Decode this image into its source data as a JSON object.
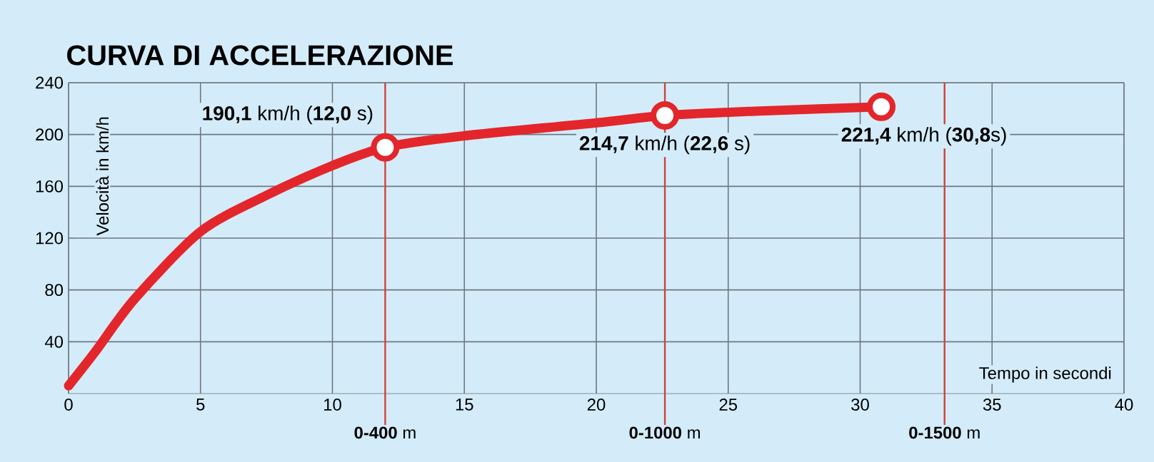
{
  "chart_data": {
    "type": "line",
    "title": "CURVA DI ACCELERAZIONE",
    "xlabel": "Tempo in secondi",
    "ylabel": "Velocità in km/h",
    "xlim": [
      0,
      40
    ],
    "ylim": [
      0,
      240
    ],
    "xticks": [
      0,
      5,
      10,
      15,
      20,
      25,
      30,
      35,
      40
    ],
    "yticks": [
      40,
      80,
      120,
      160,
      200,
      240
    ],
    "grid": true,
    "series": [
      {
        "color": "#e3262b",
        "marker": "none",
        "x": [
          0,
          1,
          2.5,
          5,
          7.5,
          10,
          12,
          15,
          20,
          22.6,
          26,
          30.8
        ],
        "values": [
          6,
          32,
          73,
          125,
          153,
          176,
          190.1,
          199,
          209,
          214.7,
          218,
          221.4
        ]
      },
      {
        "type": "scatter",
        "color": "#e3262b",
        "marker": "circle",
        "x": [
          12,
          22.6,
          30.8
        ],
        "values": [
          190.1,
          214.7,
          221.4
        ]
      }
    ],
    "ref_lines": [
      {
        "axis": "x",
        "value": 12,
        "label": "**0-400** m",
        "color": "#d0433a"
      },
      {
        "axis": "x",
        "value": 22.6,
        "label": "**0-1000** m",
        "color": "#d0433a"
      },
      {
        "axis": "x",
        "value": 33.2,
        "label": "**0-1500** m",
        "color": "#d0433a"
      }
    ],
    "annotations": [
      {
        "text": "**190,1** km/h (**12,0** s)",
        "x": 12,
        "y": 190.1
      },
      {
        "text": "**214,7** km/h (**22,6** s)",
        "x": 22.6,
        "y": 214.7
      },
      {
        "text": "**221,4** km/h (**30,8**s)",
        "x": 30.8,
        "y": 221.4
      }
    ]
  }
}
